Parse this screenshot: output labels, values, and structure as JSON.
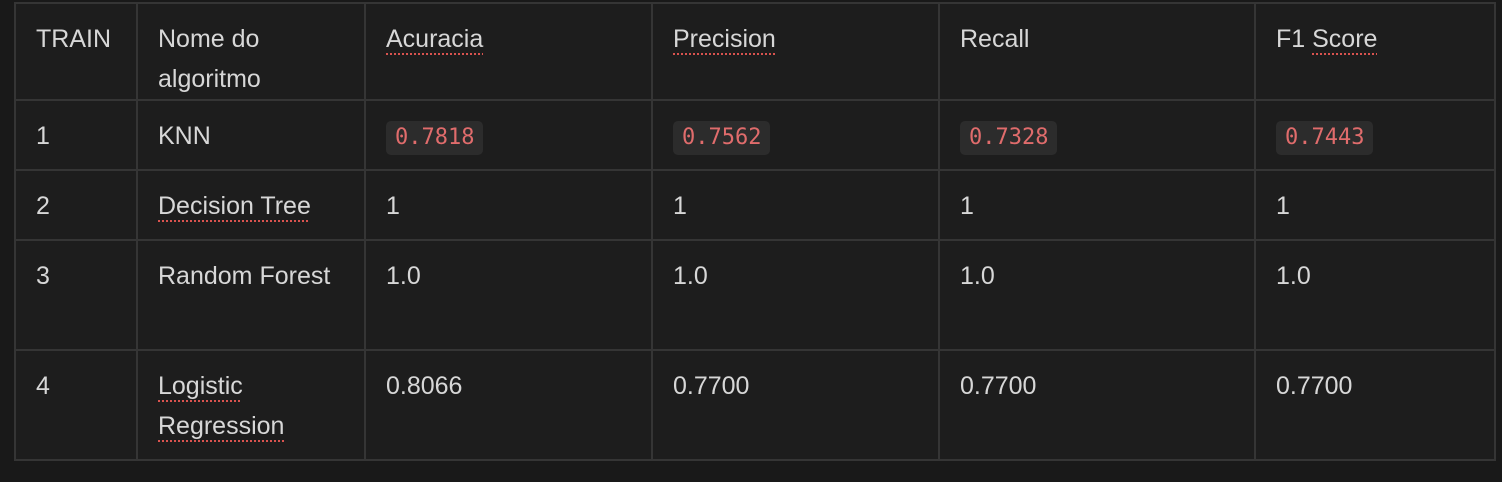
{
  "table": {
    "headers": [
      "TRAIN",
      "Nome do algoritmo",
      "Acuracia",
      "Precision",
      "Recall",
      "F1 Score"
    ],
    "rows": [
      {
        "train": "1",
        "name": "KNN",
        "acuracia": "0.7818",
        "precision": "0.7562",
        "recall": "0.7328",
        "f1": "0.7443",
        "code_style": true
      },
      {
        "train": "2",
        "name": "Decision Tree",
        "acuracia": "1",
        "precision": "1",
        "recall": "1",
        "f1": "1",
        "code_style": false
      },
      {
        "train": "3",
        "name": "Random Forest",
        "acuracia": "1.0",
        "precision": "1.0",
        "recall": "1.0",
        "f1": "1.0",
        "code_style": false
      },
      {
        "train": "4",
        "name": "Logistic Regression",
        "acuracia": "0.8066",
        "precision": "0.7700",
        "recall": "0.7700",
        "f1": "0.7700",
        "code_style": false
      }
    ]
  },
  "colors": {
    "background": "#191919",
    "cell_background": "#1d1d1d",
    "border": "#353535",
    "text": "#d7d7d7",
    "inline_code_text": "#e06c6c",
    "inline_code_background": "#2c2c2c",
    "spellcheck_underline": "#d9534f"
  }
}
